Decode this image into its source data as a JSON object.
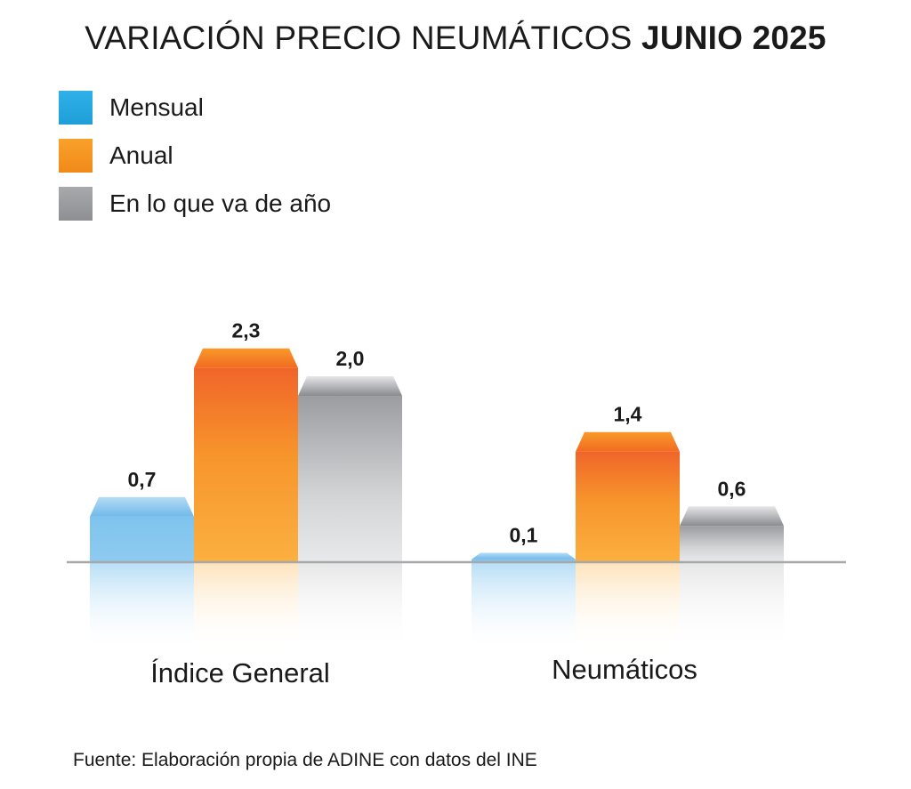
{
  "title": {
    "main": "VARIACIÓN PRECIO NEUMÁTICOS",
    "bold": "JUNIO 2025"
  },
  "legend": [
    {
      "label": "Mensual",
      "color": "#29abe2"
    },
    {
      "label": "Anual",
      "color": "#f7931e"
    },
    {
      "label": "En lo que va de año",
      "color": "#9e9fa3"
    }
  ],
  "chart_data": {
    "type": "bar",
    "title": "VARIACIÓN PRECIO NEUMÁTICOS JUNIO 2025",
    "categories": [
      "Índice General",
      "Neumáticos"
    ],
    "series": [
      {
        "name": "Mensual",
        "values": [
          0.7,
          0.1
        ],
        "labels": [
          "0,7",
          "0,1"
        ]
      },
      {
        "name": "Anual",
        "values": [
          2.3,
          1.4
        ],
        "labels": [
          "2,3",
          "1,4"
        ]
      },
      {
        "name": "En lo que va de año",
        "values": [
          2.0,
          0.6
        ],
        "labels": [
          "2,0",
          "0,6"
        ]
      }
    ],
    "xlabel": "",
    "ylabel": "",
    "ylim": [
      0,
      2.5
    ],
    "grid": false,
    "legend": "top-left"
  },
  "source": "Fuente: Elaboración propia de ADINE con datos del INE"
}
